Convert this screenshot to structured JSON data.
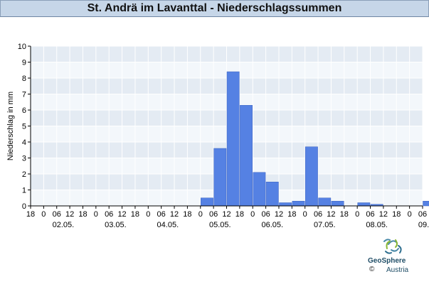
{
  "header": {
    "title": "St. Andrä im Lavanttal - Niederschlagssummen"
  },
  "chart_data": {
    "type": "bar",
    "title": "St. Andrä im Lavanttal - Niederschlagssummen",
    "ylabel": "Niederschlag in mm",
    "xlabel": "",
    "ylim": [
      0,
      10
    ],
    "yticks": [
      0,
      1,
      2,
      3,
      4,
      5,
      6,
      7,
      8,
      9,
      10
    ],
    "grid": true,
    "bar_color": "#5581e3",
    "hour_tick_labels": [
      "18",
      "0",
      "06",
      "12",
      "18",
      "0",
      "06",
      "12",
      "18",
      "0",
      "06",
      "12",
      "18",
      "0",
      "06",
      "12",
      "18",
      "0",
      "06",
      "12",
      "18",
      "0",
      "06",
      "12",
      "18",
      "0",
      "06",
      "12",
      "18",
      "0",
      "06"
    ],
    "date_labels": [
      "02.05.",
      "03.05.",
      "04.05.",
      "05.05.",
      "06.05.",
      "07.05.",
      "08.05.",
      "09.05."
    ],
    "bars": [
      {
        "x": "05.05. 00-06",
        "value": 0.5
      },
      {
        "x": "05.05. 06-12",
        "value": 3.6
      },
      {
        "x": "05.05. 12-18",
        "value": 8.4
      },
      {
        "x": "05.05. 18-00",
        "value": 6.3
      },
      {
        "x": "06.05. 00-06",
        "value": 2.1
      },
      {
        "x": "06.05. 06-12",
        "value": 1.5
      },
      {
        "x": "06.05. 12-18",
        "value": 0.2
      },
      {
        "x": "06.05. 18-00",
        "value": 0.3
      },
      {
        "x": "07.05. 00-06",
        "value": 3.7
      },
      {
        "x": "07.05. 06-12",
        "value": 0.5
      },
      {
        "x": "07.05. 12-18",
        "value": 0.3
      },
      {
        "x": "08.05. 00-06",
        "value": 0.2
      },
      {
        "x": "08.05. 06-12",
        "value": 0.1
      },
      {
        "x": "09.05. 06-12",
        "value": 0.3
      }
    ]
  },
  "logo": {
    "name": "GeoSphere",
    "subtitle": "Austria",
    "copyright": "©"
  }
}
